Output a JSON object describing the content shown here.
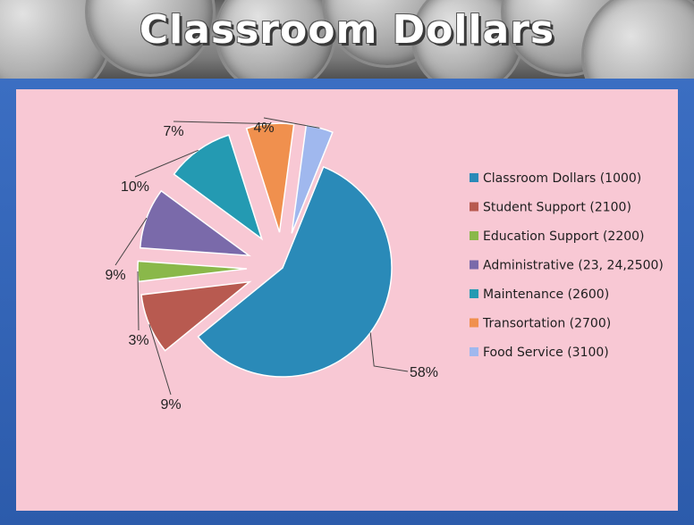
{
  "title": "Classroom Dollars",
  "chart_data": {
    "type": "pie",
    "title": "",
    "legend_position": "right",
    "slices": [
      {
        "name": "Classroom Dollars (1000)",
        "value": 58,
        "label": "58%",
        "color": "#2a8ab8"
      },
      {
        "name": "Student Support  (2100)",
        "value": 9,
        "label": "9%",
        "color": "#b85a50"
      },
      {
        "name": "Education Support (2200)",
        "value": 3,
        "label": "3%",
        "color": "#8ab84a"
      },
      {
        "name": "Administrative (23, 24,2500)",
        "value": 9,
        "label": "9%",
        "color": "#7a6aaa"
      },
      {
        "name": "Maintenance (2600)",
        "value": 10,
        "label": "10%",
        "color": "#249ab2"
      },
      {
        "name": "Transortation (2700)",
        "value": 7,
        "label": "7%",
        "color": "#f0904e"
      },
      {
        "name": "Food Service (3100)",
        "value": 4,
        "label": "4%",
        "color": "#a0b8ee"
      }
    ]
  }
}
